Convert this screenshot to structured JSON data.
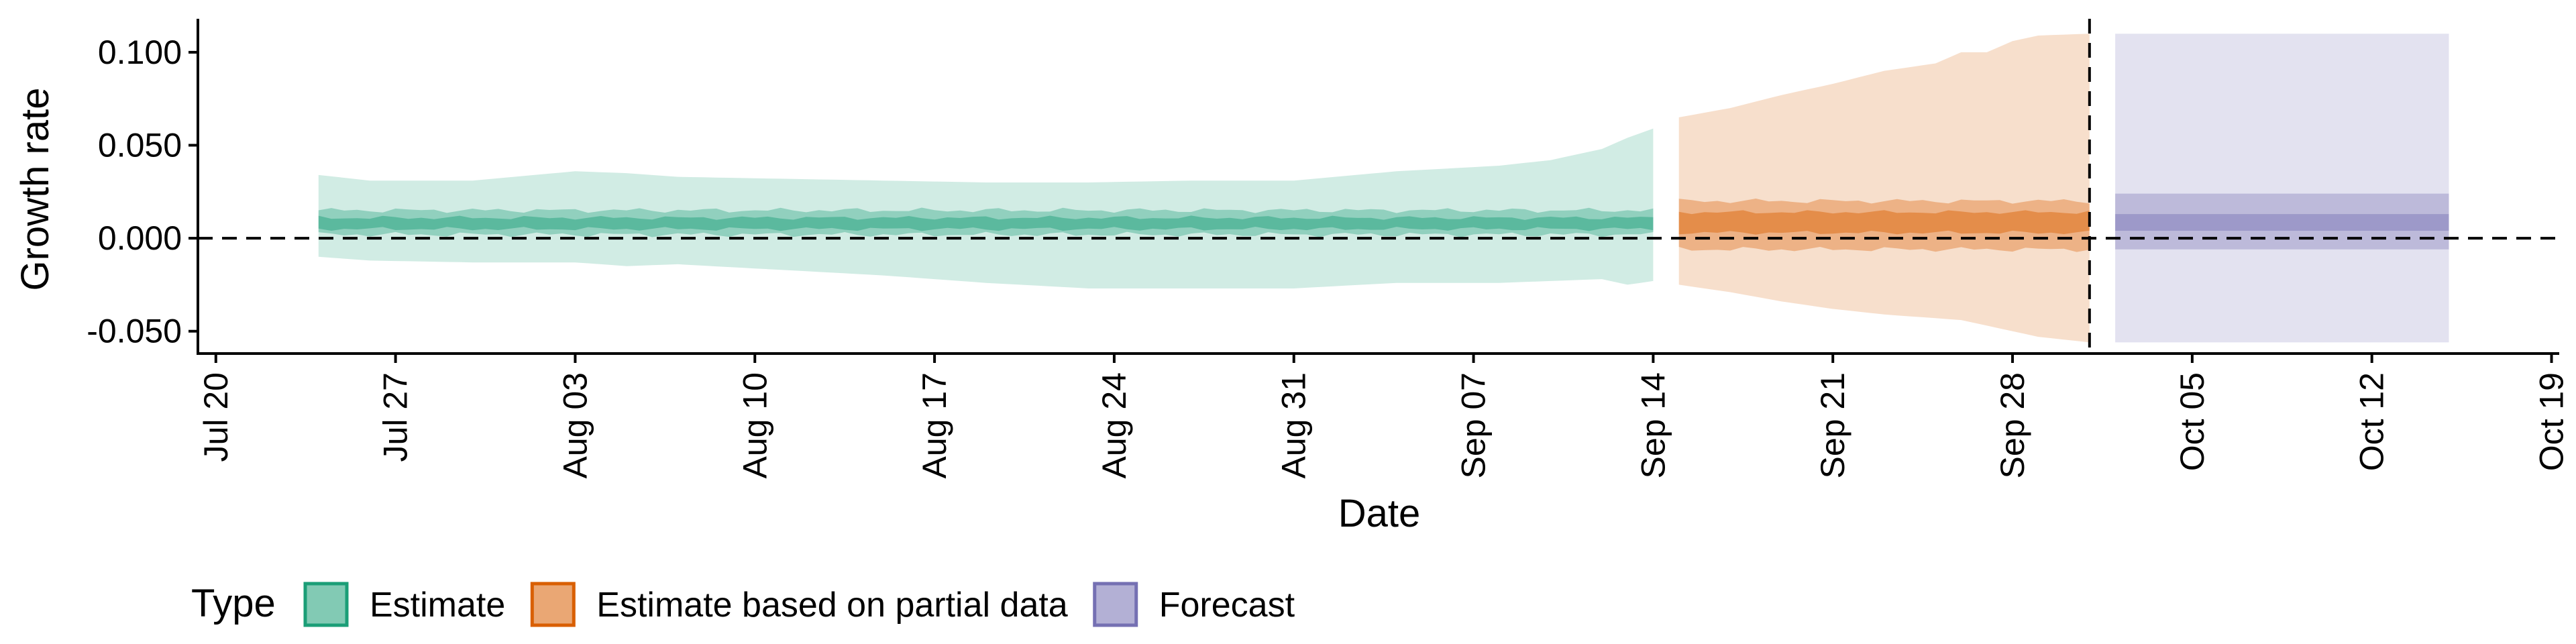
{
  "chart_data": {
    "type": "area",
    "title": "",
    "xlabel": "Date",
    "ylabel": "Growth rate",
    "x_ticks": [
      "Jul 20",
      "Jul 27",
      "Aug 03",
      "Aug 10",
      "Aug 17",
      "Aug 24",
      "Aug 31",
      "Sep 07",
      "Sep 14",
      "Sep 21",
      "Sep 28",
      "Oct 05",
      "Oct 12",
      "Oct 19"
    ],
    "y_ticks": [
      "-0.050",
      "0.000",
      "0.050",
      "0.100"
    ],
    "ylim": [
      -0.062,
      0.118
    ],
    "x_day_range": [
      -0.7,
      91.3
    ],
    "x_origin_label": "Jul 20",
    "reference_lines": [
      {
        "axis": "y",
        "value": 0,
        "style": "dashed"
      },
      {
        "axis": "x",
        "value": 73,
        "label": "Oct 02",
        "style": "dashed"
      }
    ],
    "legend": {
      "title": "Type",
      "position": "bottom-left",
      "entries": [
        {
          "label": "Estimate",
          "color": "#1b9e77"
        },
        {
          "label": "Estimate based on partial data",
          "color": "#d95f02"
        },
        {
          "label": "Forecast",
          "color": "#7570b3"
        }
      ]
    },
    "series": [
      {
        "name": "Estimate",
        "color": "#1b9e77",
        "start_day": 4,
        "end_day": 56,
        "outer_x": [
          4,
          6,
          10,
          14,
          16,
          18,
          22,
          26,
          30,
          34,
          38,
          42,
          46,
          50,
          52,
          54,
          55,
          56
        ],
        "outer_upper": [
          0.034,
          0.031,
          0.031,
          0.036,
          0.035,
          0.033,
          0.032,
          0.031,
          0.03,
          0.03,
          0.031,
          0.031,
          0.036,
          0.039,
          0.042,
          0.048,
          0.054,
          0.059
        ],
        "outer_lower": [
          -0.01,
          -0.012,
          -0.013,
          -0.013,
          -0.015,
          -0.014,
          -0.017,
          -0.02,
          -0.024,
          -0.027,
          -0.027,
          -0.027,
          -0.024,
          -0.024,
          -0.023,
          -0.022,
          -0.025,
          -0.023
        ],
        "mid_upper": 0.015,
        "mid_lower": 0.002,
        "inner_upper": 0.011,
        "inner_lower": 0.005
      },
      {
        "name": "Estimate based on partial data",
        "color": "#d95f02",
        "start_day": 57,
        "end_day": 73,
        "outer_x": [
          57,
          59,
          61,
          63,
          65,
          67,
          68,
          69,
          70,
          71,
          73
        ],
        "outer_upper": [
          0.065,
          0.07,
          0.077,
          0.083,
          0.09,
          0.094,
          0.1,
          0.1,
          0.106,
          0.109,
          0.11
        ],
        "outer_lower": [
          -0.025,
          -0.029,
          -0.034,
          -0.038,
          -0.041,
          -0.043,
          -0.044,
          -0.047,
          -0.05,
          -0.053,
          -0.056
        ],
        "mid_upper": 0.02,
        "mid_lower": -0.006,
        "inner_upper": 0.014,
        "inner_lower": 0.003
      },
      {
        "name": "Forecast",
        "color": "#7570b3",
        "start_day": 74,
        "end_day": 87,
        "outer_x": [
          74,
          87
        ],
        "outer_upper": [
          0.11,
          0.11
        ],
        "outer_lower": [
          -0.056,
          -0.056
        ],
        "mid_upper": 0.024,
        "mid_lower": -0.006,
        "inner_upper": 0.013,
        "inner_lower": 0.004
      }
    ]
  }
}
